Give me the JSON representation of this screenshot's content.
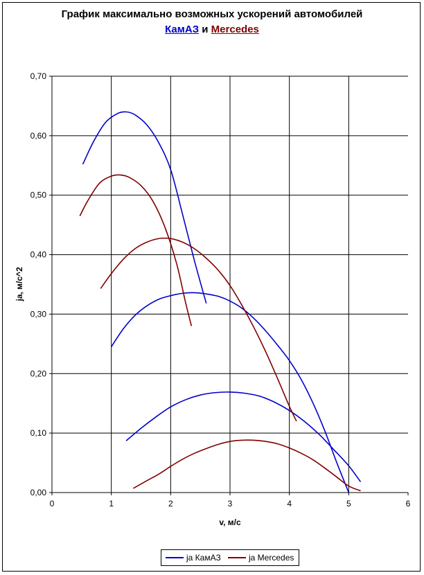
{
  "chart_data": {
    "type": "line",
    "title": {
      "line1": "График максимально возможных ускорений автомобилей",
      "name_a": "КамАЗ",
      "connector": " и ",
      "name_b": "Mercedes"
    },
    "xlabel": "v, м/с",
    "ylabel": "ja, м/с^2",
    "xlim": [
      0,
      6
    ],
    "ylim": [
      0,
      0.7
    ],
    "x_ticks": [
      "0",
      "1",
      "2",
      "3",
      "4",
      "5",
      "6"
    ],
    "y_ticks": [
      "0,00",
      "0,10",
      "0,20",
      "0,30",
      "0,40",
      "0,50",
      "0,60",
      "0,70"
    ],
    "grid": true,
    "legend_position": "bottom",
    "colors": {
      "kamaz": "#0000CC",
      "mercedes": "#800000"
    },
    "legend": [
      "ja КамАЗ",
      "ja Mercedes"
    ],
    "series": [
      {
        "group": "kamaz",
        "points": [
          [
            0.52,
            0.552
          ],
          [
            0.7,
            0.59
          ],
          [
            0.9,
            0.622
          ],
          [
            1.1,
            0.637
          ],
          [
            1.25,
            0.64
          ],
          [
            1.4,
            0.635
          ],
          [
            1.6,
            0.618
          ],
          [
            1.8,
            0.588
          ],
          [
            2.0,
            0.543
          ],
          [
            2.2,
            0.468
          ],
          [
            2.4,
            0.39
          ],
          [
            2.6,
            0.318
          ]
        ]
      },
      {
        "group": "kamaz",
        "points": [
          [
            1.0,
            0.245
          ],
          [
            1.2,
            0.275
          ],
          [
            1.4,
            0.298
          ],
          [
            1.6,
            0.314
          ],
          [
            1.8,
            0.325
          ],
          [
            2.0,
            0.331
          ],
          [
            2.2,
            0.335
          ],
          [
            2.4,
            0.336
          ],
          [
            2.6,
            0.334
          ],
          [
            2.8,
            0.33
          ],
          [
            3.0,
            0.322
          ],
          [
            3.2,
            0.31
          ],
          [
            3.4,
            0.293
          ],
          [
            3.6,
            0.272
          ],
          [
            3.8,
            0.248
          ],
          [
            4.0,
            0.222
          ],
          [
            4.2,
            0.19
          ],
          [
            4.4,
            0.15
          ],
          [
            4.6,
            0.103
          ],
          [
            4.8,
            0.05
          ],
          [
            5.0,
            0.0
          ]
        ]
      },
      {
        "group": "kamaz",
        "points": [
          [
            1.25,
            0.087
          ],
          [
            1.5,
            0.108
          ],
          [
            1.75,
            0.127
          ],
          [
            2.0,
            0.144
          ],
          [
            2.25,
            0.156
          ],
          [
            2.5,
            0.164
          ],
          [
            2.75,
            0.168
          ],
          [
            3.0,
            0.169
          ],
          [
            3.25,
            0.167
          ],
          [
            3.5,
            0.162
          ],
          [
            3.75,
            0.152
          ],
          [
            4.0,
            0.138
          ],
          [
            4.25,
            0.12
          ],
          [
            4.5,
            0.098
          ],
          [
            4.75,
            0.072
          ],
          [
            5.0,
            0.045
          ],
          [
            5.2,
            0.018
          ]
        ]
      },
      {
        "group": "mercedes",
        "points": [
          [
            0.47,
            0.465
          ],
          [
            0.6,
            0.49
          ],
          [
            0.8,
            0.52
          ],
          [
            1.0,
            0.532
          ],
          [
            1.15,
            0.534
          ],
          [
            1.3,
            0.53
          ],
          [
            1.5,
            0.516
          ],
          [
            1.7,
            0.49
          ],
          [
            1.9,
            0.447
          ],
          [
            2.1,
            0.385
          ],
          [
            2.25,
            0.32
          ],
          [
            2.35,
            0.28
          ]
        ]
      },
      {
        "group": "mercedes",
        "points": [
          [
            0.82,
            0.343
          ],
          [
            1.0,
            0.368
          ],
          [
            1.2,
            0.392
          ],
          [
            1.4,
            0.41
          ],
          [
            1.6,
            0.421
          ],
          [
            1.8,
            0.427
          ],
          [
            2.0,
            0.427
          ],
          [
            2.2,
            0.421
          ],
          [
            2.4,
            0.41
          ],
          [
            2.6,
            0.394
          ],
          [
            2.8,
            0.374
          ],
          [
            3.0,
            0.348
          ],
          [
            3.2,
            0.315
          ],
          [
            3.4,
            0.278
          ],
          [
            3.6,
            0.237
          ],
          [
            3.8,
            0.192
          ],
          [
            4.0,
            0.145
          ],
          [
            4.12,
            0.12
          ]
        ]
      },
      {
        "group": "mercedes",
        "points": [
          [
            1.37,
            0.007
          ],
          [
            1.6,
            0.02
          ],
          [
            1.8,
            0.031
          ],
          [
            2.0,
            0.044
          ],
          [
            2.2,
            0.056
          ],
          [
            2.4,
            0.066
          ],
          [
            2.6,
            0.074
          ],
          [
            2.8,
            0.081
          ],
          [
            3.0,
            0.086
          ],
          [
            3.2,
            0.088
          ],
          [
            3.4,
            0.088
          ],
          [
            3.6,
            0.086
          ],
          [
            3.8,
            0.082
          ],
          [
            4.0,
            0.075
          ],
          [
            4.2,
            0.066
          ],
          [
            4.4,
            0.055
          ],
          [
            4.6,
            0.041
          ],
          [
            4.8,
            0.026
          ],
          [
            5.0,
            0.011
          ],
          [
            5.2,
            0.003
          ]
        ]
      }
    ]
  }
}
